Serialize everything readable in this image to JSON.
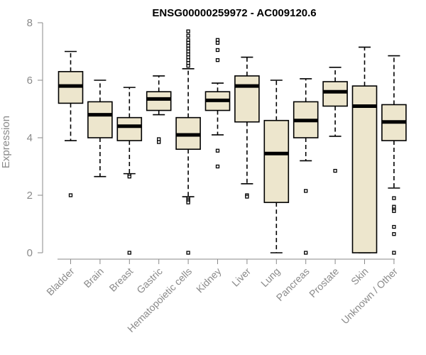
{
  "chart_data": {
    "type": "boxplot",
    "title": "ENSG00000259972 - AC009120.6",
    "xlabel": "",
    "ylabel": "Expression",
    "ylim": [
      0,
      8
    ],
    "yticks": [
      0,
      2,
      4,
      6,
      8
    ],
    "grid": false,
    "box_color": "#ede6cd",
    "categories": [
      "Bladder",
      "Brain",
      "Breast",
      "Gastric",
      "Hematopoietic cells",
      "Kidney",
      "Liver",
      "Lung",
      "Pancreas",
      "Prostate",
      "Skin",
      "Unknown / Other"
    ],
    "series": [
      {
        "category": "Bladder",
        "min": 3.9,
        "q1": 5.2,
        "median": 5.8,
        "q3": 6.3,
        "max": 7.0,
        "outliers": [
          2.0
        ]
      },
      {
        "category": "Brain",
        "min": 2.65,
        "q1": 4.0,
        "median": 4.8,
        "q3": 5.25,
        "max": 6.0,
        "outliers": []
      },
      {
        "category": "Breast",
        "min": 2.75,
        "q1": 3.9,
        "median": 4.4,
        "q3": 4.7,
        "max": 5.75,
        "outliers": [
          2.7,
          2.65,
          0.0
        ]
      },
      {
        "category": "Gastric",
        "min": 4.8,
        "q1": 4.95,
        "median": 5.35,
        "q3": 5.6,
        "max": 6.15,
        "outliers": [
          3.95,
          3.85
        ]
      },
      {
        "category": "Hematopoietic cells",
        "min": 1.95,
        "q1": 3.6,
        "median": 4.1,
        "q3": 4.7,
        "max": 6.4,
        "outliers": [
          7.7,
          7.55,
          7.4,
          7.3,
          7.2,
          7.1,
          7.0,
          6.9,
          6.8,
          6.7,
          6.6,
          6.5,
          1.9,
          1.85,
          1.8,
          1.75,
          0.0
        ]
      },
      {
        "category": "Kidney",
        "min": 4.1,
        "q1": 4.95,
        "median": 5.3,
        "q3": 5.6,
        "max": 5.9,
        "outliers": [
          7.4,
          7.3,
          7.05,
          6.7,
          3.55,
          3.0
        ]
      },
      {
        "category": "Liver",
        "min": 2.4,
        "q1": 4.55,
        "median": 5.8,
        "q3": 6.15,
        "max": 6.8,
        "outliers": [
          2.0,
          1.95
        ]
      },
      {
        "category": "Lung",
        "min": 0.0,
        "q1": 1.75,
        "median": 3.45,
        "q3": 4.6,
        "max": 6.0,
        "outliers": []
      },
      {
        "category": "Pancreas",
        "min": 3.2,
        "q1": 4.0,
        "median": 4.6,
        "q3": 5.25,
        "max": 6.05,
        "outliers": [
          2.15,
          0.0
        ]
      },
      {
        "category": "Prostate",
        "min": 4.05,
        "q1": 5.1,
        "median": 5.6,
        "q3": 5.95,
        "max": 6.45,
        "outliers": [
          2.85
        ]
      },
      {
        "category": "Skin",
        "min": 0.0,
        "q1": 0.0,
        "median": 5.1,
        "q3": 5.8,
        "max": 7.15,
        "outliers": []
      },
      {
        "category": "Unknown / Other",
        "min": 2.25,
        "q1": 3.9,
        "median": 4.55,
        "q3": 5.15,
        "max": 6.85,
        "outliers": [
          1.9,
          1.6,
          1.5,
          1.45,
          0.9,
          0.65,
          0.0
        ]
      }
    ]
  }
}
